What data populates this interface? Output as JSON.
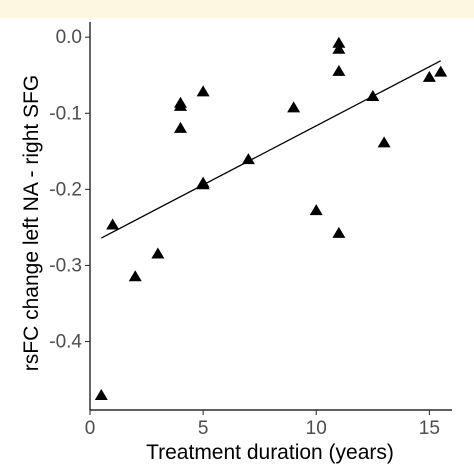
{
  "colors": {
    "top_band": "#fdf7e1",
    "axis": "#000000",
    "marker": "#000000",
    "tick_text": "#4d4d4d"
  },
  "chart_data": {
    "type": "scatter",
    "title": "",
    "xlabel": "Treatment duration (years)",
    "ylabel": "rsFC change left NA - right SFG",
    "xlim": [
      0,
      16
    ],
    "ylim": [
      -0.49,
      0.02
    ],
    "x_ticks": [
      0,
      5,
      10,
      15
    ],
    "x_tick_labels": [
      "0",
      "5",
      "10",
      "15"
    ],
    "y_ticks": [
      0.0,
      -0.1,
      -0.2,
      -0.3,
      -0.4
    ],
    "y_tick_labels": [
      "0.0",
      "-0.1",
      "-0.2",
      "-0.3",
      "-0.4"
    ],
    "grid": false,
    "marker": "triangle",
    "points": [
      {
        "x": 0.5,
        "y": -0.471
      },
      {
        "x": 1.0,
        "y": -0.247
      },
      {
        "x": 2.0,
        "y": -0.315
      },
      {
        "x": 3.0,
        "y": -0.285
      },
      {
        "x": 4.0,
        "y": -0.087
      },
      {
        "x": 4.0,
        "y": -0.091
      },
      {
        "x": 4.0,
        "y": -0.12
      },
      {
        "x": 5.0,
        "y": -0.072
      },
      {
        "x": 5.0,
        "y": -0.192
      },
      {
        "x": 5.0,
        "y": -0.194
      },
      {
        "x": 7.0,
        "y": -0.161
      },
      {
        "x": 9.0,
        "y": -0.093
      },
      {
        "x": 10.0,
        "y": -0.228
      },
      {
        "x": 11.0,
        "y": -0.008
      },
      {
        "x": 11.0,
        "y": -0.016
      },
      {
        "x": 11.0,
        "y": -0.045
      },
      {
        "x": 11.0,
        "y": -0.258
      },
      {
        "x": 12.5,
        "y": -0.078
      },
      {
        "x": 13.0,
        "y": -0.139
      },
      {
        "x": 15.0,
        "y": -0.053
      },
      {
        "x": 15.5,
        "y": -0.046
      }
    ],
    "trend_line": {
      "x": [
        0.5,
        15.5
      ],
      "y": [
        -0.264,
        -0.031
      ]
    }
  }
}
